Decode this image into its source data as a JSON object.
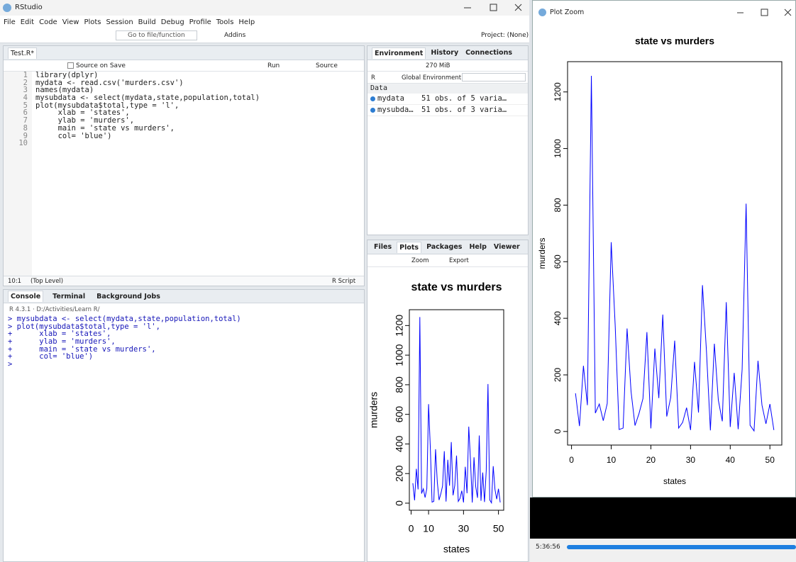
{
  "rstudio": {
    "title": "RStudio",
    "menu": [
      "File",
      "Edit",
      "Code",
      "View",
      "Plots",
      "Session",
      "Build",
      "Debug",
      "Profile",
      "Tools",
      "Help"
    ],
    "toolbar": {
      "goto": "Go to file/function",
      "addins": "Addins",
      "project": "Project: (None)"
    },
    "editor": {
      "tab": "Test.R*",
      "source_on_save": "Source on Save",
      "run": "Run",
      "source": "Source",
      "line_numbers": [
        "1",
        "2",
        "3",
        "4",
        "5",
        "6",
        "7",
        "8",
        "9",
        "10"
      ],
      "lines": [
        "library(dplyr)",
        "mydata <- read.csv('murders.csv')",
        "names(mydata)",
        "mysubdata <- select(mydata,state,population,total)",
        "plot(mysubdata$total,type = 'l',",
        "     xlab = 'states',",
        "     ylab = 'murders',",
        "     main = 'state vs murders',",
        "     col= 'blue')",
        ""
      ],
      "position": "10:1",
      "scope": "(Top Level)",
      "file_type": "R Script"
    },
    "console": {
      "tabs": [
        "Console",
        "Terminal",
        "Background Jobs"
      ],
      "version": "R 4.3.1",
      "path": "· D:/Activities/Learn R/",
      "lines": [
        "> mysubdata <- select(mydata,state,population,total)",
        "> plot(mysubdata$total,type = 'l',",
        "+      xlab = 'states',",
        "+      ylab = 'murders',",
        "+      main = 'state vs murders',",
        "+      col= 'blue')",
        "> "
      ]
    },
    "environment": {
      "tabs": [
        "Environment",
        "History",
        "Connections"
      ],
      "memory": "270 MiB",
      "language": "R",
      "scope": "Global Environment",
      "section": "Data",
      "rows": [
        [
          "mydata",
          "51 obs. of 5 varia…"
        ],
        [
          "mysubda…",
          "51 obs. of 3 varia…"
        ]
      ]
    },
    "files": {
      "tabs": [
        "Files",
        "Plots",
        "Packages",
        "Help",
        "Viewer"
      ],
      "zoom": "Zoom",
      "export": "Export"
    }
  },
  "plot_zoom": {
    "title": "Plot Zoom"
  },
  "player": {
    "time": "5:36:56"
  },
  "chart_data": [
    {
      "type": "line",
      "title": "state vs murders",
      "x_label": "states",
      "y_label": "murders",
      "color": "#0000ff",
      "x": [
        1,
        2,
        3,
        4,
        5,
        6,
        7,
        8,
        9,
        10,
        11,
        12,
        13,
        14,
        15,
        16,
        17,
        18,
        19,
        20,
        21,
        22,
        23,
        24,
        25,
        26,
        27,
        28,
        29,
        30,
        31,
        32,
        33,
        34,
        35,
        36,
        37,
        38,
        39,
        40,
        41,
        42,
        43,
        44,
        45,
        46,
        47,
        48,
        49,
        50,
        51
      ],
      "values": [
        135,
        19,
        232,
        93,
        1257,
        65,
        97,
        38,
        99,
        669,
        376,
        7,
        12,
        364,
        142,
        21,
        63,
        116,
        351,
        11,
        293,
        118,
        413,
        53,
        120,
        321,
        12,
        32,
        84,
        5,
        246,
        67,
        517,
        286,
        4,
        310,
        111,
        36,
        457,
        16,
        207,
        8,
        219,
        805,
        22,
        2,
        250,
        93,
        27,
        97,
        5
      ],
      "xlim": [
        -1,
        53
      ],
      "ylim": [
        -48,
        1307
      ],
      "xticks": [
        0,
        10,
        30,
        50
      ],
      "yticks": [
        0,
        200,
        400,
        600,
        800,
        1000,
        1200
      ]
    },
    {
      "type": "line",
      "title": "state vs murders",
      "x_label": "states",
      "y_label": "murders",
      "color": "#0000ff",
      "x": [
        1,
        2,
        3,
        4,
        5,
        6,
        7,
        8,
        9,
        10,
        11,
        12,
        13,
        14,
        15,
        16,
        17,
        18,
        19,
        20,
        21,
        22,
        23,
        24,
        25,
        26,
        27,
        28,
        29,
        30,
        31,
        32,
        33,
        34,
        35,
        36,
        37,
        38,
        39,
        40,
        41,
        42,
        43,
        44,
        45,
        46,
        47,
        48,
        49,
        50,
        51
      ],
      "values": [
        135,
        19,
        232,
        93,
        1257,
        65,
        97,
        38,
        99,
        669,
        376,
        7,
        12,
        364,
        142,
        21,
        63,
        116,
        351,
        11,
        293,
        118,
        413,
        53,
        120,
        321,
        12,
        32,
        84,
        5,
        246,
        67,
        517,
        286,
        4,
        310,
        111,
        36,
        457,
        16,
        207,
        8,
        219,
        805,
        22,
        2,
        250,
        93,
        27,
        97,
        5
      ],
      "xlim": [
        -1,
        53
      ],
      "ylim": [
        -48,
        1307
      ],
      "xticks": [
        0,
        10,
        20,
        30,
        40,
        50
      ],
      "yticks": [
        0,
        200,
        400,
        600,
        800,
        1000,
        1200
      ]
    }
  ]
}
